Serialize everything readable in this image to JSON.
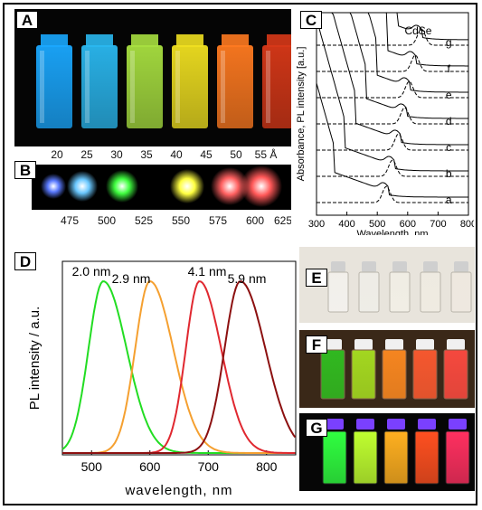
{
  "panels": {
    "a": {
      "label": "A"
    },
    "b": {
      "label": "B",
      "size_ticks": [
        "20",
        "25",
        "30",
        "35",
        "40",
        "45",
        "50",
        "55 Å"
      ],
      "wavelength_ticks": [
        "475",
        "500",
        "525",
        "550",
        "575",
        "600",
        "625 nm"
      ]
    },
    "c": {
      "label": "C",
      "material": "CdSe"
    },
    "d": {
      "label": "D"
    },
    "e": {
      "label": "E"
    },
    "f": {
      "label": "F"
    },
    "g": {
      "label": "G"
    }
  },
  "chart_data": [
    {
      "id": "C",
      "type": "line",
      "xlabel": "Wavelength, nm",
      "ylabel": "Absorbance, PL intensity [a.u.]",
      "xlim": [
        300,
        800
      ],
      "x_ticks": [
        "300",
        "400",
        "500",
        "600",
        "700",
        "800"
      ],
      "annotation": "CdSe",
      "series": [
        {
          "name": "a",
          "absorption_peak": 520,
          "pl_peak": 530
        },
        {
          "name": "b",
          "absorption_peak": 540,
          "pl_peak": 550
        },
        {
          "name": "c",
          "absorption_peak": 560,
          "pl_peak": 570
        },
        {
          "name": "d",
          "absorption_peak": 580,
          "pl_peak": 590
        },
        {
          "name": "e",
          "absorption_peak": 590,
          "pl_peak": 605
        },
        {
          "name": "f",
          "absorption_peak": 610,
          "pl_peak": 625
        },
        {
          "name": "g",
          "absorption_peak": 630,
          "pl_peak": 645
        }
      ]
    },
    {
      "id": "D",
      "type": "line",
      "xlabel": "wavelength, nm",
      "ylabel": "PL intensity / a.u.",
      "xlim": [
        450,
        850
      ],
      "x_ticks": [
        500,
        600,
        700,
        800
      ],
      "series": [
        {
          "name": "2.0 nm",
          "peak": 520,
          "fwhm": 70,
          "color": "#22dd22"
        },
        {
          "name": "2.9 nm",
          "peak": 600,
          "fwhm": 70,
          "color": "#f5a030"
        },
        {
          "name": "4.1 nm",
          "peak": 685,
          "fwhm": 65,
          "color": "#e02830"
        },
        {
          "name": "5.9 nm",
          "peak": 755,
          "fwhm": 75,
          "color": "#8c1010"
        }
      ]
    }
  ],
  "colors": {
    "vial_solutions": [
      "#1aa8ff",
      "#2ab8f0",
      "#a8e040",
      "#f0e020",
      "#ff7a20",
      "#d83818"
    ],
    "dot_glows": [
      "#5a7aff",
      "#6ac8ff",
      "#40ff40",
      "#ffff40",
      "#ff6060",
      "#ff5858"
    ]
  }
}
